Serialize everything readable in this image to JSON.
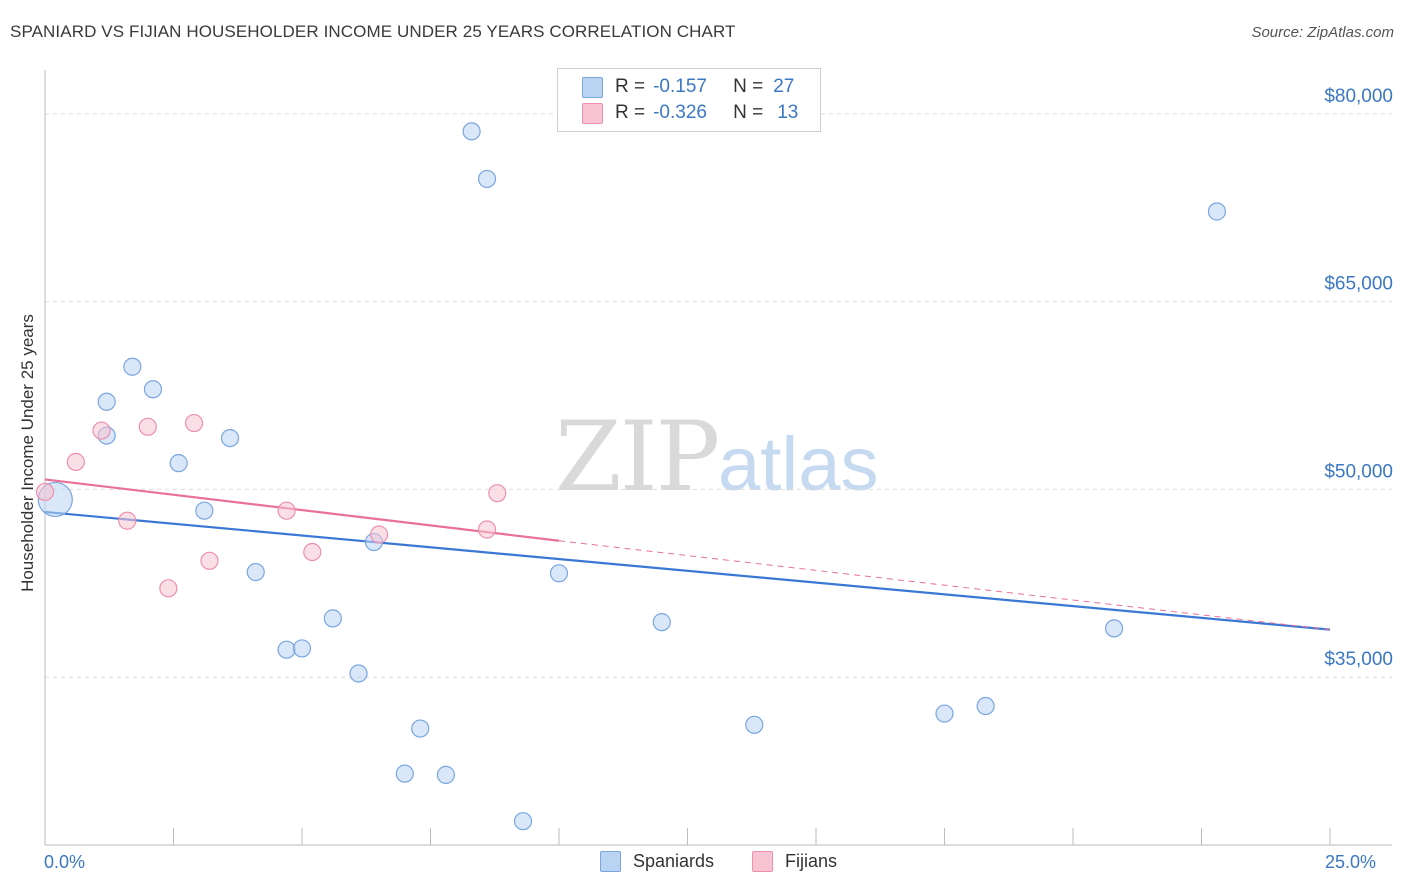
{
  "title": "SPANIARD VS FIJIAN HOUSEHOLDER INCOME UNDER 25 YEARS CORRELATION CHART",
  "source": "Source: ZipAtlas.com",
  "watermark": {
    "zip": "ZIP",
    "atlas": "atlas"
  },
  "legend": {
    "r_label": "R =",
    "n_label": "N =",
    "rows": [
      {
        "r": "-0.157",
        "n": "27",
        "color": "#b9d3f3",
        "border": "#7aa6e0"
      },
      {
        "r": "-0.326",
        "n": "13",
        "color": "#f8c4d4",
        "border": "#ec90ae"
      }
    ]
  },
  "bottom_legend": [
    "Spaniards",
    "Fijians"
  ],
  "chart_data": {
    "type": "scatter",
    "title": "SPANIARD VS FIJIAN HOUSEHOLDER INCOME UNDER 25 YEARS CORRELATION CHART",
    "xlabel": "",
    "ylabel": "Householder Income Under 25 years",
    "xlim": [
      0,
      25
    ],
    "ylim": [
      21600,
      83500
    ],
    "x_tick_labels": [
      "0.0%",
      "25.0%"
    ],
    "y_ticks": [
      35000,
      50000,
      65000,
      80000
    ],
    "y_tick_labels": [
      "$35,000",
      "$50,000",
      "$65,000",
      "$80,000"
    ],
    "colors": {
      "spaniards": "#3a78d4",
      "fijians": "#e8709a",
      "axis_label": "#3b78c4"
    },
    "series": [
      {
        "name": "Spaniards",
        "trend": {
          "x": [
            0,
            25
          ],
          "y": [
            48200,
            38800
          ],
          "dashed_beyond": null
        },
        "points": [
          {
            "x": 0.2,
            "y": 49200,
            "big": true
          },
          {
            "x": 1.2,
            "y": 54300,
            "big": false
          },
          {
            "x": 1.2,
            "y": 57000,
            "big": false
          },
          {
            "x": 1.7,
            "y": 59800,
            "big": false
          },
          {
            "x": 2.1,
            "y": 58000,
            "big": false
          },
          {
            "x": 2.6,
            "y": 52100,
            "big": false
          },
          {
            "x": 3.1,
            "y": 48300,
            "big": false
          },
          {
            "x": 3.6,
            "y": 54100,
            "big": false
          },
          {
            "x": 4.1,
            "y": 43400,
            "big": false
          },
          {
            "x": 4.7,
            "y": 37200,
            "big": false
          },
          {
            "x": 5.0,
            "y": 37300,
            "big": false
          },
          {
            "x": 5.6,
            "y": 39700,
            "big": false
          },
          {
            "x": 6.1,
            "y": 35300,
            "big": false
          },
          {
            "x": 6.4,
            "y": 45800,
            "big": false
          },
          {
            "x": 7.0,
            "y": 27300,
            "big": false
          },
          {
            "x": 7.3,
            "y": 30900,
            "big": false
          },
          {
            "x": 7.8,
            "y": 27200,
            "big": false
          },
          {
            "x": 8.3,
            "y": 78600,
            "big": false
          },
          {
            "x": 8.6,
            "y": 74800,
            "big": false
          },
          {
            "x": 9.3,
            "y": 23500,
            "big": false
          },
          {
            "x": 10.0,
            "y": 43300,
            "big": false
          },
          {
            "x": 12.0,
            "y": 39400,
            "big": false
          },
          {
            "x": 13.8,
            "y": 31200,
            "big": false
          },
          {
            "x": 17.5,
            "y": 32100,
            "big": false
          },
          {
            "x": 18.3,
            "y": 32700,
            "big": false
          },
          {
            "x": 20.8,
            "y": 38900,
            "big": false
          },
          {
            "x": 22.8,
            "y": 72200,
            "big": false
          }
        ]
      },
      {
        "name": "Fijians",
        "trend": {
          "x": [
            0,
            10
          ],
          "y": [
            50800,
            45900
          ],
          "dashed_to": [
            25,
            38800
          ]
        },
        "points": [
          {
            "x": 0.0,
            "y": 49800,
            "big": false
          },
          {
            "x": 0.6,
            "y": 52200,
            "big": false
          },
          {
            "x": 1.1,
            "y": 54700,
            "big": false
          },
          {
            "x": 1.6,
            "y": 47500,
            "big": false
          },
          {
            "x": 2.0,
            "y": 55000,
            "big": false
          },
          {
            "x": 2.4,
            "y": 42100,
            "big": false
          },
          {
            "x": 2.9,
            "y": 55300,
            "big": false
          },
          {
            "x": 3.2,
            "y": 44300,
            "big": false
          },
          {
            "x": 4.7,
            "y": 48300,
            "big": false
          },
          {
            "x": 5.2,
            "y": 45000,
            "big": false
          },
          {
            "x": 6.5,
            "y": 46400,
            "big": false
          },
          {
            "x": 8.6,
            "y": 46800,
            "big": false
          },
          {
            "x": 8.8,
            "y": 49700,
            "big": false
          }
        ]
      }
    ]
  }
}
